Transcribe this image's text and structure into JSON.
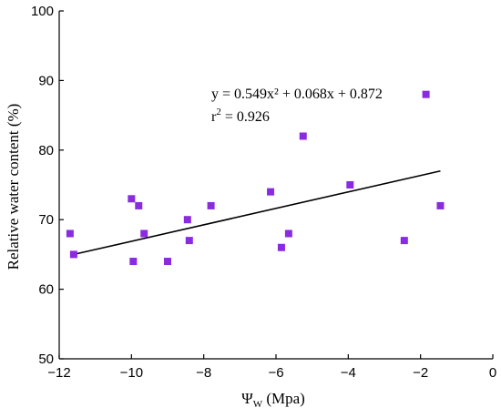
{
  "chart_data": {
    "type": "scatter",
    "title": "",
    "xlabel": "Ψ",
    "xlabel_sub": "W",
    "xlabel_unit": " (Mpa)",
    "ylabel": "Relative water content (%)",
    "xlim": [
      -12,
      0
    ],
    "ylim": [
      50,
      100
    ],
    "xticks": [
      -12,
      -10,
      -8,
      -6,
      -4,
      -2,
      0
    ],
    "yticks": [
      50,
      60,
      70,
      80,
      90,
      100
    ],
    "xtick_labels": [
      "−12",
      "−10",
      "−8",
      "−6",
      "−4",
      "−2",
      "0"
    ],
    "ytick_labels": [
      "50",
      "60",
      "70",
      "80",
      "90",
      "100"
    ],
    "grid": false,
    "marker_color": "#8a2be2",
    "line_color": "#000000",
    "series": [
      {
        "x": [
          -11.7,
          -11.6,
          -10.0,
          -9.95,
          -9.8,
          -9.65,
          -9.0,
          -8.45,
          -8.4,
          -7.8,
          -6.15,
          -5.85,
          -5.65,
          -5.25,
          -3.95,
          -2.45,
          -1.85,
          -1.45
        ],
        "y": [
          68,
          65,
          73,
          64,
          72,
          68,
          64,
          70,
          67,
          72,
          74,
          66,
          68,
          82,
          75,
          67,
          88,
          72
        ]
      }
    ],
    "trendline": {
      "x": [
        -11.6,
        -1.45
      ],
      "y": [
        65,
        77
      ]
    },
    "annotations": {
      "equation": "y = 0.549x² + 0.068x + 0.872",
      "r2_prefix": "r",
      "r2_sup": "2",
      "r2_value": " = 0.926"
    }
  }
}
